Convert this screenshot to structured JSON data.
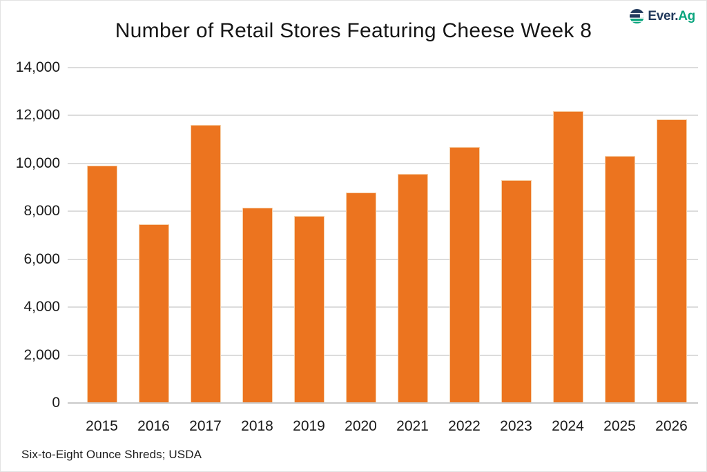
{
  "logo": {
    "text_primary": "Ever.",
    "text_secondary": "Ag"
  },
  "colors": {
    "bar": "#EC741F",
    "bar_border": "#F6D2AC",
    "grid": "#DCDCDC",
    "baseline": "#C9C9C9",
    "text": "#1A1A1A",
    "logo_navy": "#21395C",
    "logo_teal": "#0AA57E"
  },
  "chart_data": {
    "type": "bar",
    "title": "Number of Retail Stores Featuring Cheese Week 8",
    "categories": [
      "2015",
      "2016",
      "2017",
      "2018",
      "2019",
      "2020",
      "2021",
      "2022",
      "2023",
      "2024",
      "2025",
      "2026"
    ],
    "values": [
      9900,
      7450,
      11600,
      8150,
      7800,
      8800,
      9550,
      10700,
      9300,
      12200,
      10300,
      11850
    ],
    "xlabel": "",
    "ylabel": "",
    "ylim": [
      0,
      14000
    ],
    "ytick_interval": 2000,
    "ytick_labels_top_to_bottom": [
      "14,000",
      "12,000",
      "10,000",
      "8,000",
      "6,000",
      "4,000",
      "2,000",
      "0"
    ],
    "grid": "horizontal",
    "legend": "none",
    "source_note": "Six-to-Eight Ounce Shreds; USDA"
  }
}
